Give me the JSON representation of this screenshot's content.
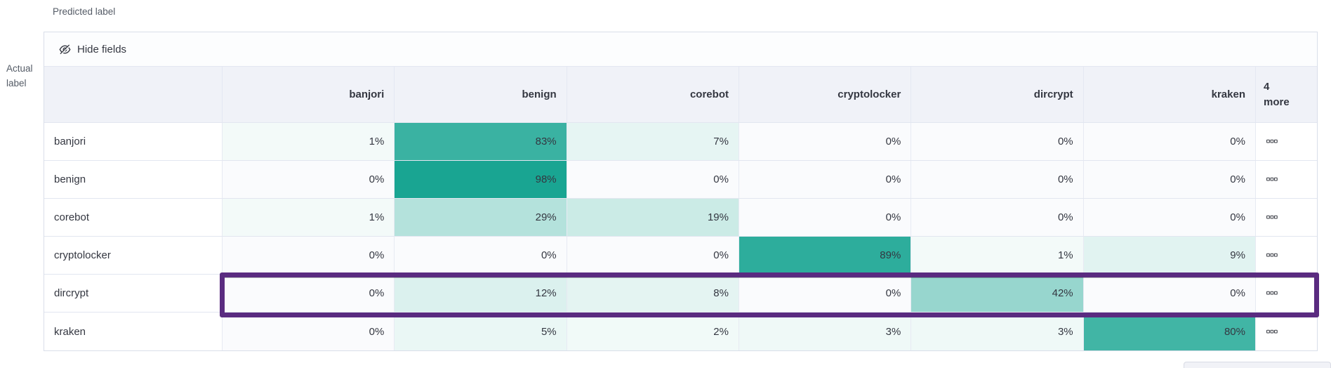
{
  "labels": {
    "predicted": "Predicted label",
    "actual_line1": "Actual",
    "actual_line2": "label"
  },
  "toolbar": {
    "hide_fields_label": "Hide fields"
  },
  "matrix": {
    "columns": [
      "banjori",
      "benign",
      "corebot",
      "cryptolocker",
      "dircrypt",
      "kraken"
    ],
    "more_column_label": "4 more",
    "rows": [
      {
        "label": "banjori",
        "values": [
          1,
          83,
          7,
          0,
          0,
          0
        ],
        "highlighted": false
      },
      {
        "label": "benign",
        "values": [
          0,
          98,
          0,
          0,
          0,
          0
        ],
        "highlighted": false
      },
      {
        "label": "corebot",
        "values": [
          1,
          29,
          19,
          0,
          0,
          0
        ],
        "highlighted": false
      },
      {
        "label": "cryptolocker",
        "values": [
          0,
          0,
          0,
          89,
          1,
          9
        ],
        "highlighted": false
      },
      {
        "label": "dircrypt",
        "values": [
          0,
          12,
          8,
          0,
          42,
          0
        ],
        "highlighted": true
      },
      {
        "label": "kraken",
        "values": [
          0,
          5,
          2,
          3,
          3,
          80
        ],
        "highlighted": false
      }
    ],
    "value_suffix": "%"
  },
  "colors": {
    "heat_max": "#14A390",
    "heat_zero": "#FAFBFD",
    "highlight_outline": "#5A2B80",
    "header_bg": "#F0F2F8",
    "text": "#343741"
  },
  "icons": {
    "hide_fields": "eye-closed-icon",
    "row_actions": "boxes-horizontal-icon"
  }
}
